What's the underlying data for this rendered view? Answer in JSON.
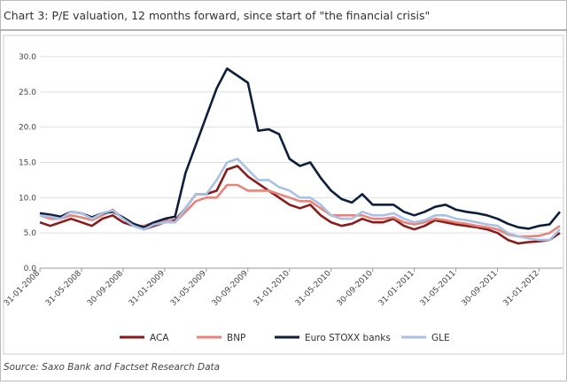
{
  "chart_data": {
    "type": "line",
    "title": "Chart 3: P/E valuation, 12 months forward, since start of \"the financial crisis\"",
    "source": "Source: Saxo Bank and Factset Research Data",
    "categories": [
      "31-01-2008",
      null,
      null,
      null,
      "31-05-2008",
      null,
      null,
      null,
      "30-09-2008",
      null,
      null,
      null,
      "31-01-2009",
      null,
      null,
      null,
      "31-05-2009",
      null,
      null,
      null,
      "30-09-2009",
      null,
      null,
      null,
      "31-01-2010",
      null,
      null,
      null,
      "31-05-2010",
      null,
      null,
      null,
      "30-09-2010",
      null,
      null,
      null,
      "31-01-2011",
      null,
      null,
      null,
      "31-05-2011",
      null,
      null,
      null,
      "30-09-2011",
      null,
      null,
      null,
      "31-01-2012",
      null,
      null
    ],
    "ylim": [
      0,
      30
    ],
    "yticks": [
      {
        "value": 0,
        "label": "0.0"
      },
      {
        "value": 5,
        "label": "5.0"
      },
      {
        "value": 10,
        "label": "10.0"
      },
      {
        "value": 15,
        "label": "15.0"
      },
      {
        "value": 20,
        "label": "20.0"
      },
      {
        "value": 25,
        "label": "25.0"
      },
      {
        "value": 30,
        "label": "30.0"
      }
    ],
    "grid": true,
    "legend": "bottom",
    "series": [
      {
        "name": "ACA",
        "color": "#8b1a1a",
        "values": [
          6.5,
          6.0,
          6.5,
          7.0,
          6.5,
          6.0,
          7.0,
          7.5,
          6.5,
          6.0,
          5.5,
          6.0,
          6.5,
          6.8,
          8.5,
          10.5,
          10.5,
          11.0,
          14.0,
          14.5,
          13.0,
          12.0,
          11.0,
          10.0,
          9.0,
          8.5,
          9.0,
          7.5,
          6.5,
          6.0,
          6.3,
          7.0,
          6.5,
          6.5,
          7.0,
          6.0,
          5.5,
          6.0,
          6.8,
          6.5,
          6.2,
          6.0,
          5.8,
          5.5,
          5.0,
          4.0,
          3.5,
          3.7,
          3.8,
          4.0,
          5.0
        ]
      },
      {
        "name": "BNP",
        "color": "#e8857a",
        "values": [
          7.5,
          7.0,
          7.0,
          7.5,
          7.2,
          6.8,
          7.5,
          8.3,
          7.0,
          6.0,
          6.0,
          6.5,
          6.8,
          6.5,
          8.0,
          9.5,
          10.0,
          10.0,
          11.8,
          11.8,
          11.0,
          11.0,
          11.0,
          10.5,
          10.0,
          9.5,
          9.5,
          8.5,
          7.5,
          7.5,
          7.5,
          7.5,
          7.0,
          7.0,
          7.2,
          6.5,
          6.2,
          6.5,
          7.0,
          6.8,
          6.5,
          6.3,
          6.0,
          5.8,
          5.5,
          4.8,
          4.5,
          4.5,
          4.6,
          5.0,
          6.0
        ]
      },
      {
        "name": "Euro STOXX banks",
        "color": "#0d1f3c",
        "values": [
          7.8,
          7.6,
          7.3,
          8.0,
          7.8,
          7.2,
          7.8,
          8.0,
          7.2,
          6.3,
          5.8,
          6.5,
          7.0,
          7.3,
          13.5,
          17.5,
          21.5,
          25.5,
          28.3,
          27.3,
          26.3,
          19.5,
          19.7,
          19.0,
          15.5,
          14.5,
          15.0,
          12.8,
          11.0,
          9.8,
          9.3,
          10.5,
          9.0,
          9.0,
          9.0,
          8.0,
          7.5,
          8.0,
          8.7,
          9.0,
          8.3,
          8.0,
          7.8,
          7.5,
          7.0,
          6.3,
          5.8,
          5.6,
          6.0,
          6.2,
          8.0
        ]
      },
      {
        "name": "GLE",
        "color": "#a9c1e6",
        "values": [
          7.5,
          7.3,
          7.0,
          8.0,
          7.8,
          7.0,
          7.8,
          8.2,
          7.0,
          6.0,
          5.5,
          6.2,
          6.5,
          6.5,
          8.5,
          10.5,
          10.5,
          12.5,
          15.0,
          15.5,
          14.0,
          12.5,
          12.5,
          11.5,
          11.0,
          10.0,
          10.0,
          9.0,
          7.5,
          7.0,
          7.0,
          8.0,
          7.5,
          7.5,
          7.8,
          7.0,
          6.5,
          6.8,
          7.5,
          7.5,
          7.0,
          6.8,
          6.5,
          6.2,
          6.0,
          5.0,
          4.5,
          4.2,
          4.0,
          4.0,
          5.5
        ]
      }
    ]
  }
}
